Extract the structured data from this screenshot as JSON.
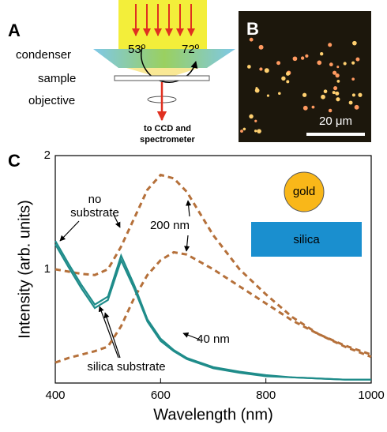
{
  "panel_a": {
    "letter": "A",
    "condenser": "condenser",
    "sample": "sample",
    "objective": "objective",
    "angle_inner": "53º",
    "angle_outer": "72º",
    "output": [
      "to CCD and",
      "spectrometer"
    ]
  },
  "panel_b": {
    "letter": "B",
    "scale_bar": "20 μm"
  },
  "panel_c": {
    "letter": "C",
    "inset": {
      "particle": "gold",
      "substrate": "silica"
    },
    "annotations": {
      "no_substrate": [
        "no",
        "substrate"
      ],
      "silica_substrate": "silica substrate",
      "size_large": "200 nm",
      "size_small": "40 nm"
    }
  },
  "chart_data": {
    "type": "line",
    "x": [
      400,
      425,
      450,
      475,
      500,
      525,
      550,
      575,
      600,
      625,
      650,
      700,
      750,
      800,
      850,
      900,
      950,
      1000
    ],
    "series": [
      {
        "color": "#b5703a",
        "dash": true,
        "values": [
          1.0,
          0.98,
          0.96,
          0.95,
          1.0,
          1.2,
          1.45,
          1.7,
          1.83,
          1.8,
          1.68,
          1.3,
          1.0,
          0.78,
          0.58,
          0.43,
          0.32,
          0.23
        ]
      },
      {
        "color": "#b5703a",
        "dash": true,
        "values": [
          0.18,
          0.22,
          0.25,
          0.28,
          0.32,
          0.5,
          0.75,
          0.95,
          1.08,
          1.15,
          1.13,
          1.0,
          0.85,
          0.7,
          0.55,
          0.43,
          0.33,
          0.25
        ]
      },
      {
        "color": "#1f8c8a",
        "dash": false,
        "values": [
          1.25,
          1.05,
          0.86,
          0.69,
          0.76,
          1.12,
          0.86,
          0.56,
          0.39,
          0.29,
          0.22,
          0.14,
          0.1,
          0.07,
          0.05,
          0.04,
          0.03,
          0.03
        ]
      },
      {
        "color": "#1f8c8a",
        "dash": false,
        "values": [
          1.22,
          1.02,
          0.83,
          0.66,
          0.73,
          1.08,
          0.83,
          0.54,
          0.37,
          0.28,
          0.21,
          0.13,
          0.09,
          0.06,
          0.05,
          0.04,
          0.03,
          0.03
        ]
      }
    ],
    "xlim": [
      400,
      1000
    ],
    "ylim": [
      0,
      2
    ],
    "xticks": [
      400,
      600,
      800,
      1000
    ],
    "yticks": [
      1,
      2
    ],
    "xlabel": "Wavelength (nm)",
    "ylabel": "Intensity (arb. units)"
  }
}
